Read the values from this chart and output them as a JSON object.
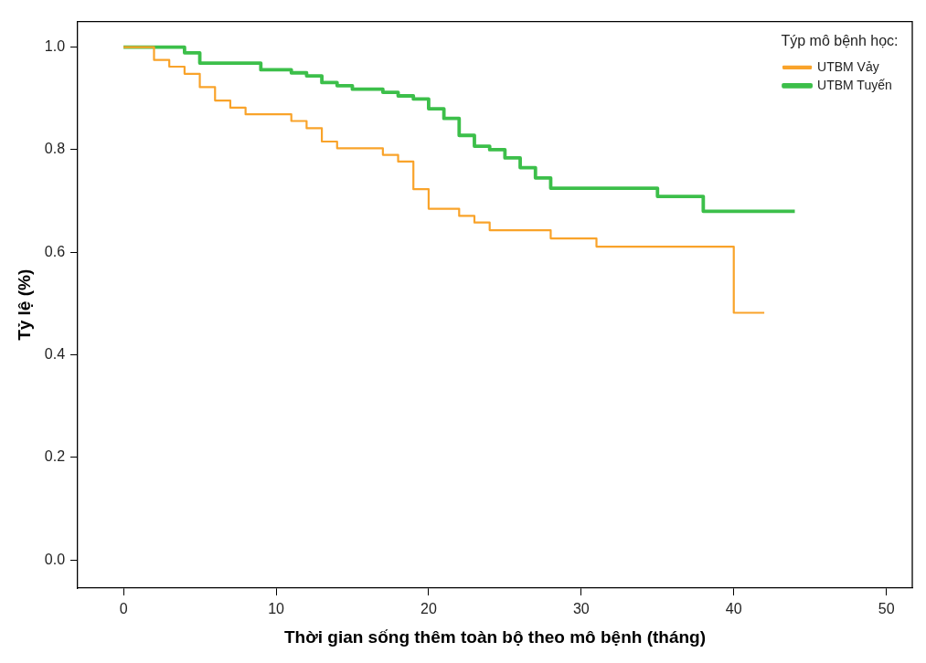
{
  "chart_data": {
    "type": "step",
    "xlabel": "Thời gian sống thêm toàn bộ theo mô bệnh (tháng)",
    "ylabel": "Tỷ lệ (%)",
    "legend_title": "Týp mô bệnh học:",
    "legend": "top right",
    "grid": false,
    "marker": "none",
    "line_style": "solid",
    "xlim": [
      -3,
      51.7
    ],
    "ylim": [
      -0.055,
      1.05
    ],
    "xticks": [
      0,
      10,
      20,
      30,
      40,
      50
    ],
    "yticks": [
      {
        "value": 0,
        "label": "0.0"
      },
      {
        "value": 0.2,
        "label": "0.2"
      },
      {
        "value": 0.4,
        "label": "0.4"
      },
      {
        "value": 0.6,
        "label": "0.6"
      },
      {
        "value": 0.8,
        "label": "0.8"
      },
      {
        "value": 1,
        "label": "1.0"
      }
    ],
    "series": [
      {
        "name": "UTBM Vảy",
        "color": "#f9a32a",
        "x": [
          0,
          2,
          3,
          4,
          5,
          6,
          7,
          8,
          11,
          12,
          13,
          14,
          17,
          18,
          19,
          20,
          22,
          23,
          24,
          28,
          31,
          40,
          42
        ],
        "values": [
          1,
          0.975,
          0.962,
          0.948,
          0.922,
          0.896,
          0.882,
          0.869,
          0.856,
          0.842,
          0.816,
          0.803,
          0.79,
          0.777,
          0.723,
          0.685,
          0.671,
          0.658,
          0.643,
          0.627,
          0.611,
          0.482,
          0.482
        ]
      },
      {
        "name": "UTBM Tuyến",
        "color": "#3cbf4a",
        "x": [
          0,
          4,
          5,
          9,
          11,
          12,
          13,
          14,
          15,
          17,
          18,
          19,
          20,
          21,
          22,
          23,
          24,
          25,
          26,
          27,
          28,
          35,
          38,
          44
        ],
        "values": [
          1,
          0.989,
          0.969,
          0.956,
          0.95,
          0.944,
          0.931,
          0.925,
          0.918,
          0.912,
          0.905,
          0.899,
          0.88,
          0.861,
          0.828,
          0.807,
          0.8,
          0.784,
          0.765,
          0.745,
          0.725,
          0.709,
          0.68,
          0.68
        ]
      }
    ]
  }
}
